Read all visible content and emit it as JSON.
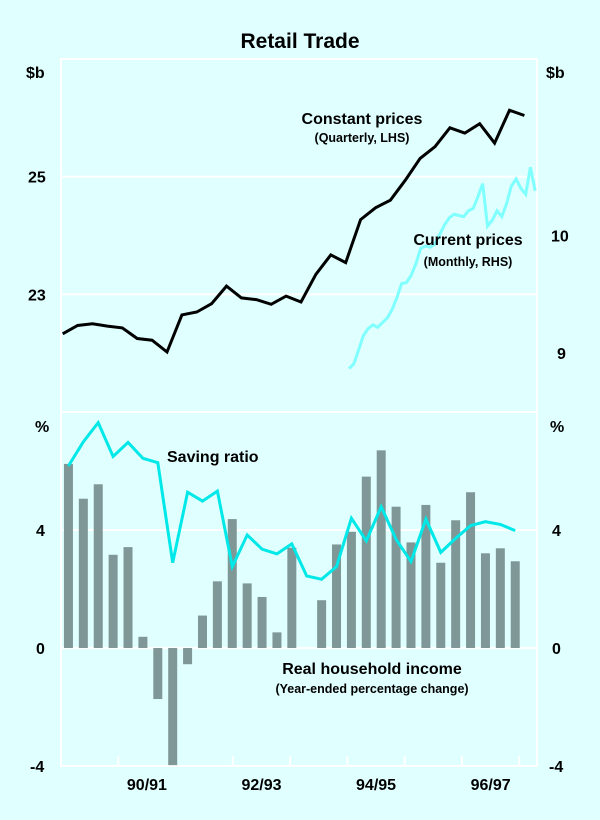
{
  "chart_data": [
    {
      "panel": "top",
      "type": "line",
      "title": "Retail Trade",
      "ylabel_left": "$b",
      "ylabel_right": "$b",
      "ylim_left": [
        21,
        27
      ],
      "ylim_right": [
        8.5,
        11.5
      ],
      "yticks_left": [
        {
          "value": 23,
          "label": "23"
        },
        {
          "value": 25,
          "label": "25"
        }
      ],
      "yticks_right": [
        {
          "value": 9,
          "label": "9"
        },
        {
          "value": 10,
          "label": "10"
        }
      ],
      "grid": true,
      "series": [
        {
          "name": "Constant prices",
          "note": "(Quarterly, LHS)",
          "axis": "left",
          "color": "#000000",
          "start": 1989.53,
          "step": 0.26,
          "values": [
            22.33,
            22.47,
            22.5,
            22.46,
            22.43,
            22.25,
            22.22,
            22.02,
            22.65,
            22.7,
            22.84,
            23.14,
            22.94,
            22.91,
            22.83,
            22.97,
            22.87,
            23.34,
            23.67,
            23.54,
            24.27,
            24.47,
            24.6,
            24.94,
            25.31,
            25.51,
            25.83,
            25.74,
            25.9,
            25.57,
            26.13,
            26.04
          ]
        },
        {
          "name": "Current prices",
          "note": "(Monthly, RHS)",
          "axis": "right",
          "color": "#80ffff",
          "start": 1994.53,
          "step": 0.0833,
          "values": [
            8.87,
            8.91,
            9.03,
            9.15,
            9.21,
            9.24,
            9.22,
            9.26,
            9.3,
            9.37,
            9.47,
            9.59,
            9.6,
            9.66,
            9.76,
            9.89,
            9.91,
            9.9,
            9.93,
            10.01,
            10.09,
            10.15,
            10.18,
            10.17,
            10.16,
            10.21,
            10.23,
            10.33,
            10.44,
            10.08,
            10.13,
            10.21,
            10.16,
            10.27,
            10.42,
            10.48,
            10.4,
            10.35,
            10.58,
            10.38
          ]
        }
      ]
    },
    {
      "panel": "bottom",
      "type": "bar",
      "ylabel_left": "%",
      "ylabel_right": "%",
      "ylim": [
        -4,
        8
      ],
      "yticks": [
        {
          "value": -4,
          "label": "-4"
        },
        {
          "value": 0,
          "label": "0"
        },
        {
          "value": 4,
          "label": "4"
        }
      ],
      "grid": true,
      "series": [
        {
          "name": "Real household income",
          "note": "(Year-ended percentage change)",
          "kind": "bar",
          "color": "#7f9797",
          "start": 1989.63,
          "step": 0.26,
          "values": [
            6.24,
            5.06,
            5.55,
            3.16,
            3.42,
            0.38,
            -1.73,
            -3.97,
            -0.55,
            1.1,
            2.26,
            4.37,
            2.19,
            1.73,
            0.53,
            3.4,
            0.0,
            1.62,
            3.51,
            3.94,
            5.81,
            6.7,
            4.79,
            3.58,
            4.85,
            2.89,
            4.33,
            5.28,
            3.21,
            3.38,
            2.94
          ]
        },
        {
          "name": "Saving ratio",
          "kind": "line",
          "color": "#00e8e8",
          "start": 1989.63,
          "step": 0.26,
          "values": [
            6.17,
            6.99,
            7.64,
            6.49,
            6.97,
            6.43,
            6.28,
            2.89,
            5.28,
            4.98,
            5.32,
            2.76,
            3.83,
            3.35,
            3.19,
            3.53,
            2.44,
            2.33,
            2.76,
            4.4,
            3.63,
            4.79,
            3.68,
            2.93,
            4.37,
            3.24,
            3.72,
            4.15,
            4.28,
            4.19,
            3.98
          ]
        }
      ]
    }
  ],
  "x_axis": {
    "range": [
      1989.5,
      1997.81
    ],
    "year_ticks": [
      1989.5,
      1990.5,
      1991.5,
      1992.5,
      1993.5,
      1994.5,
      1995.5,
      1996.5,
      1997.5
    ],
    "labels": [
      {
        "at": 1991.0,
        "label": "90/91"
      },
      {
        "at": 1993.0,
        "label": "92/93"
      },
      {
        "at": 1995.0,
        "label": "94/95"
      },
      {
        "at": 1997.0,
        "label": "96/97"
      }
    ]
  },
  "labels": {
    "title": "Retail Trade",
    "constant_prices": "Constant prices",
    "constant_prices_note": "(Quarterly, LHS)",
    "current_prices": "Current prices",
    "current_prices_note": "(Monthly, RHS)",
    "saving_ratio": "Saving ratio",
    "real_income": "Real household income",
    "real_income_note": "(Year-ended percentage change)",
    "top_left_unit": "$b",
    "top_right_unit": "$b",
    "bottom_left_unit": "%",
    "bottom_right_unit": "%"
  }
}
